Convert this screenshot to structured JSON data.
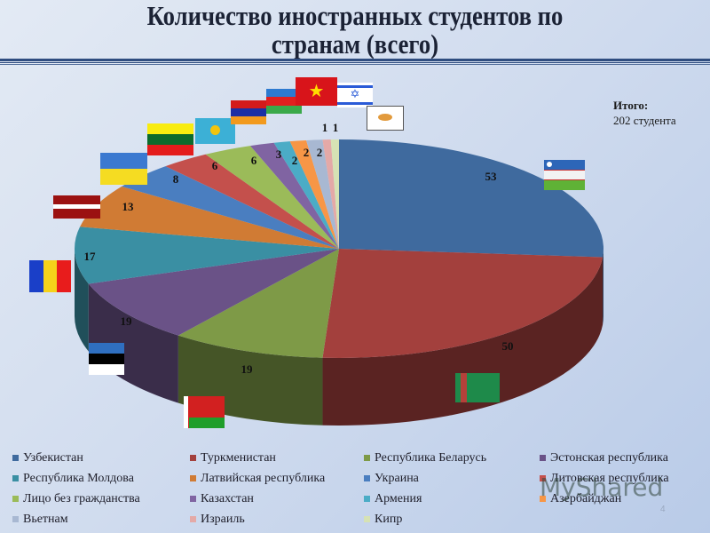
{
  "slide": {
    "title_line1": "Количество иностранных студентов по",
    "title_line2": "странам (всего)",
    "total_label": "Итого:",
    "total_value": "202 студента",
    "page_number": "4",
    "watermark": "MyShared"
  },
  "legend": [
    {
      "label": "Узбекистан",
      "color": "#3f6a9e"
    },
    {
      "label": "Туркменистан",
      "color": "#a3403d"
    },
    {
      "label": "Республика Беларусь",
      "color": "#7e9a47"
    },
    {
      "label": "Эстонская республика",
      "color": "#6a5287"
    },
    {
      "label": "Республика Молдова",
      "color": "#3a8fa3"
    },
    {
      "label": "Латвийская республика",
      "color": "#d07b34"
    },
    {
      "label": "Украина",
      "color": "#4a7ec0"
    },
    {
      "label": "Литовская республика",
      "color": "#c4504c"
    },
    {
      "label": "Лицо без гражданства",
      "color": "#9bbb59"
    },
    {
      "label": "Казахстан",
      "color": "#8064a2"
    },
    {
      "label": "Армения",
      "color": "#4bacc6"
    },
    {
      "label": "Азербайджан",
      "color": "#f79646"
    },
    {
      "label": "Вьетнам",
      "color": "#a8b8d2"
    },
    {
      "label": "Израиль",
      "color": "#e4a9a7"
    },
    {
      "label": "Кипр",
      "color": "#d6e2b4"
    }
  ],
  "chart_data": {
    "type": "pie",
    "title": "Количество иностранных студентов по странам (всего)",
    "categories": [
      "Узбекистан",
      "Туркменистан",
      "Республика Беларусь",
      "Эстонская республика",
      "Республика Молдова",
      "Латвийская республика",
      "Украина",
      "Литовская республика",
      "Лицо без гражданства",
      "Казахстан",
      "Армения",
      "Азербайджан",
      "Вьетнам",
      "Израиль",
      "Кипр"
    ],
    "values": [
      53,
      50,
      19,
      19,
      17,
      13,
      8,
      6,
      6,
      3,
      2,
      2,
      2,
      1,
      1
    ],
    "total": 202,
    "annotation": "Итого: 202 студента",
    "legend_position": "bottom",
    "style": "3d-pie, clockwise from 12 o'clock, data labels shown"
  }
}
